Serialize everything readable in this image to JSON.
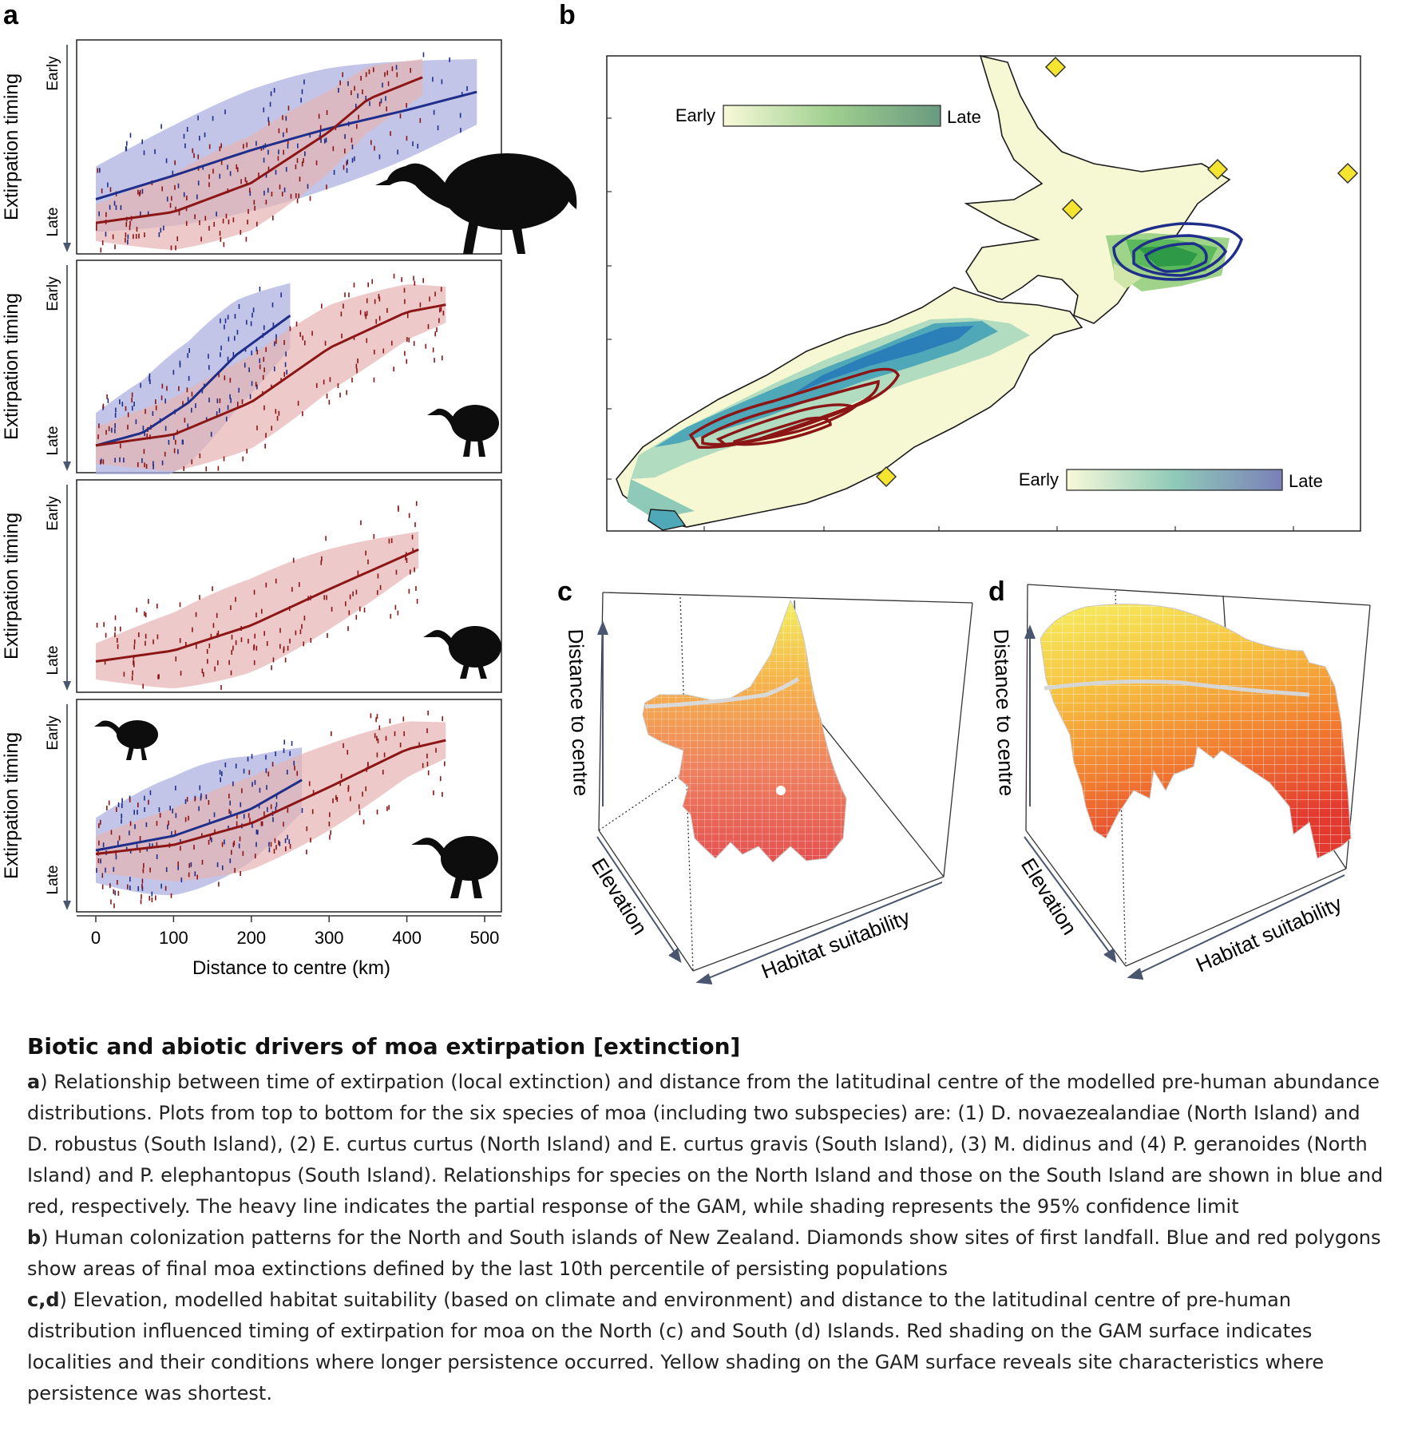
{
  "figure": {
    "panel_a": {
      "letter": "a",
      "ylabel": "Extirpation timing",
      "y_top": "Early",
      "y_bottom": "Late",
      "xlabel": "Distance to centre (km)",
      "xticks": [
        "0",
        "100",
        "200",
        "300",
        "400",
        "500"
      ]
    },
    "panel_b": {
      "letter": "b",
      "legend_north": {
        "left": "Early",
        "right": "Late"
      },
      "legend_south": {
        "left": "Early",
        "right": "Late"
      }
    },
    "panel_c": {
      "letter": "c",
      "axis_distance": "Distance to centre",
      "axis_elevation": "Elevation",
      "axis_habitat": "Habitat suitability"
    },
    "panel_d": {
      "letter": "d",
      "axis_distance": "Distance to centre",
      "axis_elevation": "Elevation",
      "axis_habitat": "Habitat suitability"
    },
    "colors": {
      "north": "#1f2e8a",
      "south": "#8c1515",
      "north_band": "#aeb2e0",
      "south_band": "#e6b4b2",
      "landfall": "#f5e430"
    }
  },
  "chart_data": [
    {
      "type": "scatter",
      "panel": "a1",
      "xlim": [
        0,
        500
      ],
      "series": [
        {
          "color": "blue",
          "x": [
            0,
            100,
            200,
            300,
            400,
            490
          ],
          "y": [
            0.23,
            0.36,
            0.5,
            0.62,
            0.72,
            0.82
          ]
        },
        {
          "color": "red",
          "x": [
            0,
            100,
            200,
            300,
            350,
            420
          ],
          "y": [
            0.1,
            0.16,
            0.32,
            0.6,
            0.78,
            0.9
          ]
        }
      ]
    },
    {
      "type": "scatter",
      "panel": "a2",
      "xlim": [
        0,
        500
      ],
      "series": [
        {
          "color": "blue",
          "x": [
            0,
            60,
            120,
            180,
            250
          ],
          "y": [
            0.08,
            0.15,
            0.32,
            0.58,
            0.8
          ]
        },
        {
          "color": "red",
          "x": [
            0,
            100,
            200,
            300,
            400,
            450
          ],
          "y": [
            0.08,
            0.14,
            0.32,
            0.62,
            0.82,
            0.86
          ]
        }
      ]
    },
    {
      "type": "scatter",
      "panel": "a3",
      "xlim": [
        0,
        500
      ],
      "series": [
        {
          "color": "red",
          "x": [
            0,
            100,
            200,
            300,
            415
          ],
          "y": [
            0.1,
            0.16,
            0.3,
            0.5,
            0.72
          ]
        }
      ]
    },
    {
      "type": "scatter",
      "panel": "a4",
      "xlim": [
        0,
        500
      ],
      "series": [
        {
          "color": "blue",
          "x": [
            0,
            100,
            200,
            265
          ],
          "y": [
            0.27,
            0.35,
            0.5,
            0.66
          ]
        },
        {
          "color": "red",
          "x": [
            0,
            100,
            200,
            300,
            400,
            450
          ],
          "y": [
            0.25,
            0.3,
            0.42,
            0.62,
            0.83,
            0.88
          ]
        }
      ]
    }
  ],
  "caption": {
    "title": "Biotic and abiotic drivers of moa extirpation [extinction]",
    "a_letter": "a",
    "a_text": ") Relationship between time of extirpation (local extinction) and distance from the latitudinal centre of the modelled pre-human abundance distributions. Plots from top to bottom for the six species of moa (including two subspecies) are: (1) D. novaezealandiae (North Island) and D. robustus (South Island), (2) E. curtus curtus (North Island) and E. curtus gravis (South Island), (3) M. didinus and (4) P. geranoides (North Island) and P. elephantopus (South Island). Relationships for species on the North Island and those on the South Island are shown in blue and red, respectively. The heavy line indicates the partial response of the GAM, while shading represents the 95% confidence limit",
    "b_letter": "b",
    "b_text": ") Human colonization patterns for the North and South islands of New Zealand. Diamonds show sites of first landfall. Blue and red polygons show areas of final moa extinctions defined by the last 10th percentile of persisting populations",
    "cd_letter": "c,d",
    "cd_text": ") Elevation, modelled habitat suitability (based on climate and environment) and distance to the latitudinal centre of pre-human distribution influenced timing of extirpation for moa on the North (c) and South (d) Islands. Red shading on the GAM surface indicates localities and their conditions where longer persistence occurred. Yellow shading on the GAM surface reveals site characteristics where persistence was shortest."
  }
}
